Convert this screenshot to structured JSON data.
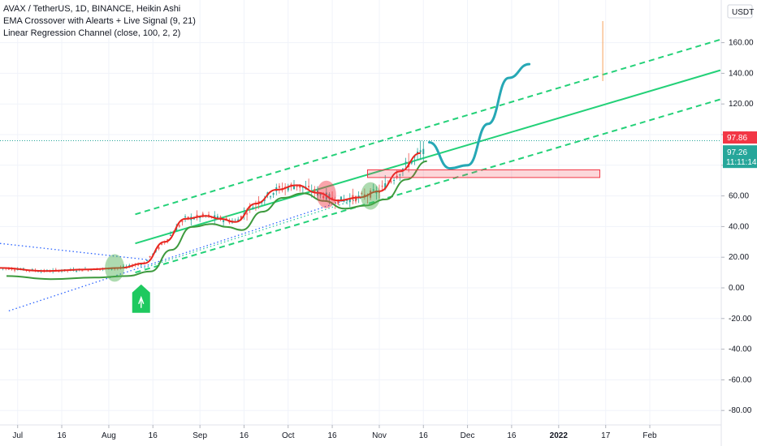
{
  "legend": {
    "symbol_line": "AVAX / TetherUS, 1D, BINANCE, Heikin Ashi",
    "indicator_1": "EMA Crossover with Alearts + Live Signal (9, 21)",
    "indicator_2": "Linear Regression Channel (close, 100, 2, 2)"
  },
  "currency_label": "USDT",
  "price_tags": {
    "last_price": "97.86",
    "current_price": "97.26",
    "countdown": "11:11:14"
  },
  "colors": {
    "regression_line": "#23d178",
    "ema_fast": "#e8261f",
    "ema_slow": "#3d9a3d",
    "projection": "#26a8b5",
    "buy_signal": "#1ec95f",
    "tag_red": "#f23645",
    "tag_teal": "#26a69a"
  },
  "chart_data": {
    "type": "line",
    "title": "AVAX / TetherUS, 1D, BINANCE, Heikin Ashi",
    "ylim": [
      -88,
      178
    ],
    "y_ticks": [
      -80,
      -60,
      -40,
      -20,
      0,
      20,
      40,
      60,
      80,
      100,
      120,
      140,
      160
    ],
    "y_tick_labels": [
      "-80.00",
      "-60.00",
      "-40.00",
      "-20.00",
      "0.00",
      "20.00",
      "40.00",
      "60.00",
      "80.00",
      "100.00",
      "120.00",
      "140.00",
      "160.00"
    ],
    "x_ticks": [
      "Jul",
      "16",
      "Aug",
      "16",
      "Sep",
      "16",
      "Oct",
      "16",
      "Nov",
      "16",
      "Dec",
      "16",
      "2022",
      "17",
      "Feb"
    ],
    "grid": true,
    "series": [
      {
        "name": "EMA Crossover with Alearts + Live Signal (9, 21)",
        "x": [
          "2021-06-25",
          "2021-07-10",
          "2021-07-25",
          "2021-08-05",
          "2021-08-13",
          "2021-08-20",
          "2021-08-27",
          "2021-09-03",
          "2021-09-08",
          "2021-09-13",
          "2021-09-20",
          "2021-09-27",
          "2021-10-04",
          "2021-10-11",
          "2021-10-18",
          "2021-10-25",
          "2021-11-01",
          "2021-11-08",
          "2021-11-15"
        ],
        "values": [
          13,
          11,
          12,
          13,
          16,
          30,
          45,
          47,
          45,
          43,
          55,
          64,
          67,
          62,
          57,
          59,
          63,
          76,
          88
        ]
      }
    ],
    "projection_path": {
      "x": [
        "2021-11-18",
        "2021-11-25",
        "2021-12-01",
        "2021-12-08",
        "2021-12-15",
        "2021-12-22"
      ],
      "values": [
        95,
        78,
        80,
        107,
        137,
        146
      ]
    },
    "regression_channel": {
      "start": {
        "x": "2021-08-10",
        "mid": 29,
        "upper": 48,
        "lower": 10
      },
      "end": {
        "x": "2022-02-25",
        "mid": 142,
        "upper": 162,
        "lower": 123
      }
    },
    "annotations": [
      {
        "type": "zone",
        "x_start": "2021-10-28",
        "x_end": "2022-01-15",
        "y_low": 72,
        "y_high": 77
      },
      {
        "type": "buy_signal",
        "x": "2021-08-12",
        "y": -2
      },
      {
        "type": "cross_marker",
        "x": "2021-08-03",
        "y": 13,
        "color": "green"
      },
      {
        "type": "cross_marker",
        "x": "2021-10-14",
        "y": 61,
        "color": "red"
      },
      {
        "type": "cross_marker",
        "x": "2021-10-29",
        "y": 60,
        "color": "green"
      }
    ]
  }
}
